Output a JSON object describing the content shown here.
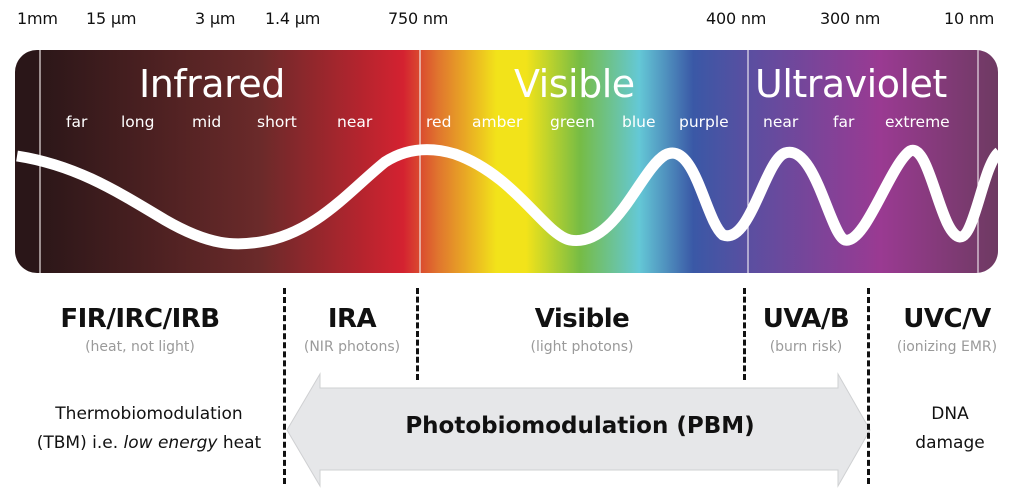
{
  "wavelength_labels": [
    "1mm",
    "15 μm",
    "3 μm",
    "1.4 μm",
    "750 nm",
    "400 nm",
    "300 nm",
    "10 nm"
  ],
  "bands": {
    "infrared": {
      "title": "Infrared",
      "subs": [
        "far",
        "long",
        "mid",
        "short",
        "near"
      ]
    },
    "visible": {
      "title": "Visible",
      "subs": [
        "red",
        "amber",
        "green",
        "blue",
        "purple"
      ]
    },
    "ultraviolet": {
      "title": "Ultraviolet",
      "subs": [
        "near",
        "far",
        "extreme"
      ]
    }
  },
  "zones": [
    {
      "title": "FIR/IRC/IRB",
      "subtitle": "(heat, not light)"
    },
    {
      "title": "IRA",
      "subtitle": "(NIR photons)"
    },
    {
      "title": "Visible",
      "subtitle": "(light photons)"
    },
    {
      "title": "UVA/B",
      "subtitle": "(burn risk)"
    },
    {
      "title": "UVC/V",
      "subtitle": "(ionizing EMR)"
    }
  ],
  "effects": {
    "left_line1": "Thermobiomodulation",
    "left_line2_prefix": "(TBM) i.e. ",
    "left_line2_italic": "low energy",
    "left_line2_suffix": " heat",
    "center": "Photobiomodulation (PBM)",
    "right_line1": "DNA",
    "right_line2": "damage"
  },
  "colors": {
    "ir_dark": "#2a1618",
    "ir_mid": "#6b2a2a",
    "red": "#d42230",
    "orange": "#e0742e",
    "yellow": "#f2e31a",
    "green": "#76bc45",
    "cyan": "#64c8d6",
    "blue": "#3a58a6",
    "violet": "#5c4ea0",
    "magenta": "#9a3a92",
    "plum": "#6e3a62",
    "arrow_fill": "#e6e7e9",
    "arrow_stroke": "#cfd0d2",
    "dash": "#111111",
    "subtitle_gray": "#9a9a9a"
  }
}
